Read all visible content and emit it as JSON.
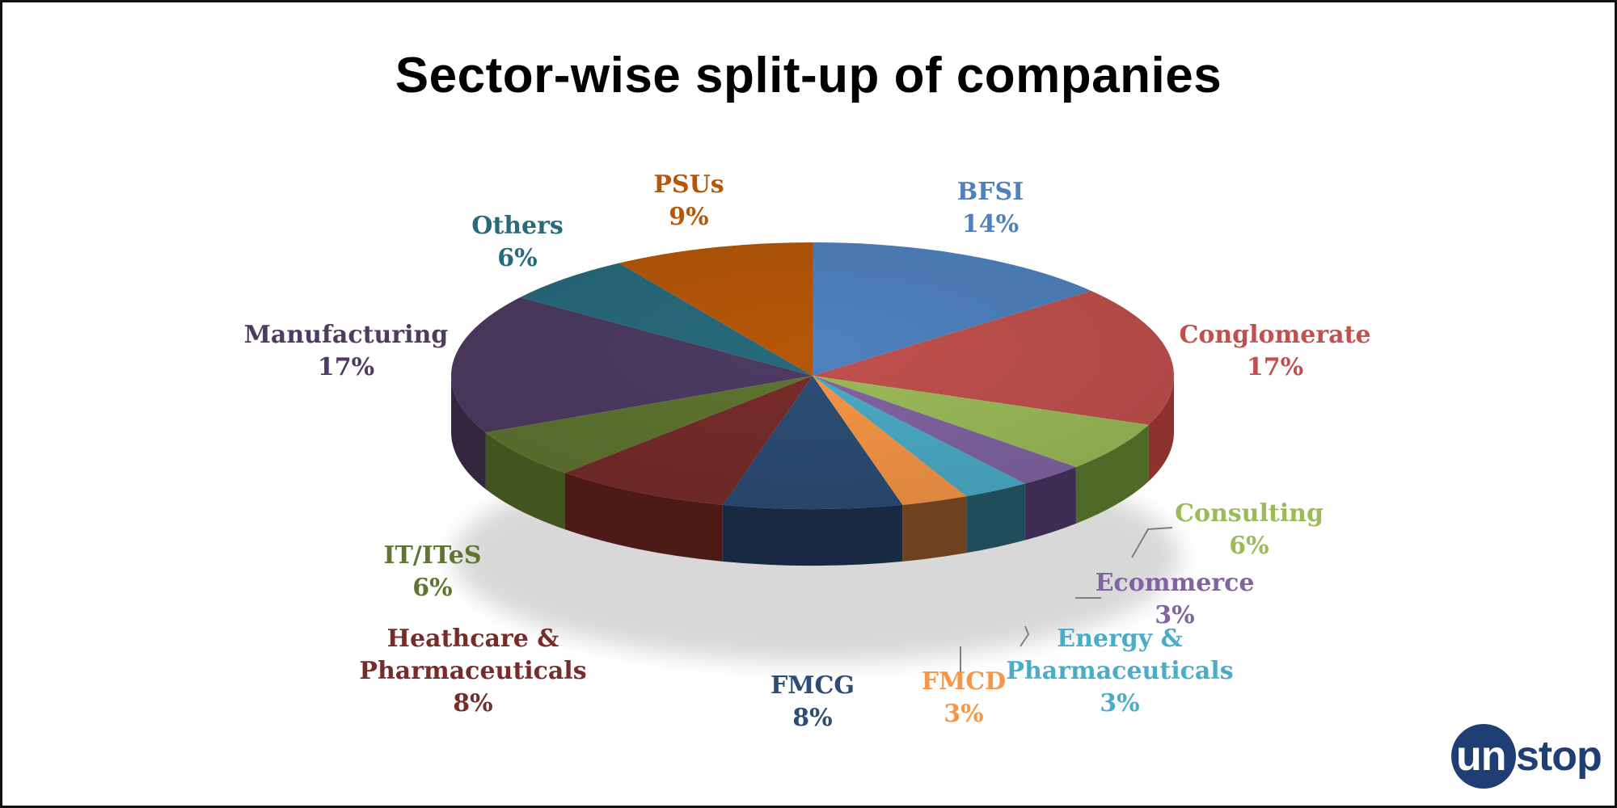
{
  "title": "Sector-wise split-up of companies",
  "chart_data": {
    "type": "pie",
    "title": "Sector-wise split-up of companies",
    "slices": [
      {
        "name": "BFSI",
        "value": 14,
        "label": "14%",
        "color": "#4f81bd",
        "side": "#3a6090"
      },
      {
        "name": "Conglomerate",
        "value": 17,
        "label": "17%",
        "color": "#c0504d",
        "side": "#8c3330"
      },
      {
        "name": "Consulting",
        "value": 6,
        "label": "6%",
        "color": "#9bbb59",
        "side": "#4f6a26"
      },
      {
        "name": "Ecommerce",
        "value": 3,
        "label": "3%",
        "color": "#8064a2",
        "side": "#3d2d52"
      },
      {
        "name": "Energy & Pharmaceuticals",
        "value": 3,
        "label": "3%",
        "color": "#4bacc6",
        "side": "#1f4d5a"
      },
      {
        "name": "FMCD",
        "value": 3,
        "label": "3%",
        "color": "#f79646",
        "side": "#6e4220"
      },
      {
        "name": "FMCG",
        "value": 8,
        "label": "8%",
        "color": "#2c4d75",
        "side": "#172a42"
      },
      {
        "name": "Heathcare & Pharmaceuticals",
        "value": 8,
        "label": "8%",
        "color": "#772c2a",
        "side": "#4e1a18"
      },
      {
        "name": "IT/ITeS",
        "value": 6,
        "label": "6%",
        "color": "#5f7530",
        "side": "#435421"
      },
      {
        "name": "Manufacturing",
        "value": 17,
        "label": "17%",
        "color": "#4d3b62",
        "side": "#33273f"
      },
      {
        "name": "Others",
        "value": 6,
        "label": "6%",
        "color": "#276a7c",
        "side": "#1a4a57"
      },
      {
        "name": "PSUs",
        "value": 9,
        "label": "9%",
        "color": "#b65708",
        "side": "#7c3c06"
      }
    ],
    "labels": [
      {
        "lines": [
          "BFSI",
          "14%"
        ],
        "color": "#4f81bd"
      },
      {
        "lines": [
          "Conglomerate",
          "17%"
        ],
        "color": "#c0504d"
      },
      {
        "lines": [
          "Consulting",
          "6%"
        ],
        "color": "#9bbb59"
      },
      {
        "lines": [
          "Ecommerce",
          "3%"
        ],
        "color": "#8064a2"
      },
      {
        "lines": [
          "Energy &",
          "Pharmaceuticals",
          "3%"
        ],
        "color": "#4bacc6"
      },
      {
        "lines": [
          "FMCD",
          "3%"
        ],
        "color": "#f79646"
      },
      {
        "lines": [
          "FMCG",
          "8%"
        ],
        "color": "#2c4d75"
      },
      {
        "lines": [
          "Heathcare &",
          "Pharmaceuticals",
          "8%"
        ],
        "color": "#772c2a"
      },
      {
        "lines": [
          "IT/ITeS",
          "6%"
        ],
        "color": "#5f7530"
      },
      {
        "lines": [
          "Manufacturing",
          "17%"
        ],
        "color": "#4d3b62"
      },
      {
        "lines": [
          "Others",
          "6%"
        ],
        "color": "#276a7c"
      },
      {
        "lines": [
          "PSUs",
          "9%"
        ],
        "color": "#b65708"
      }
    ]
  },
  "logo": {
    "part1": "un",
    "part2": "stop"
  }
}
